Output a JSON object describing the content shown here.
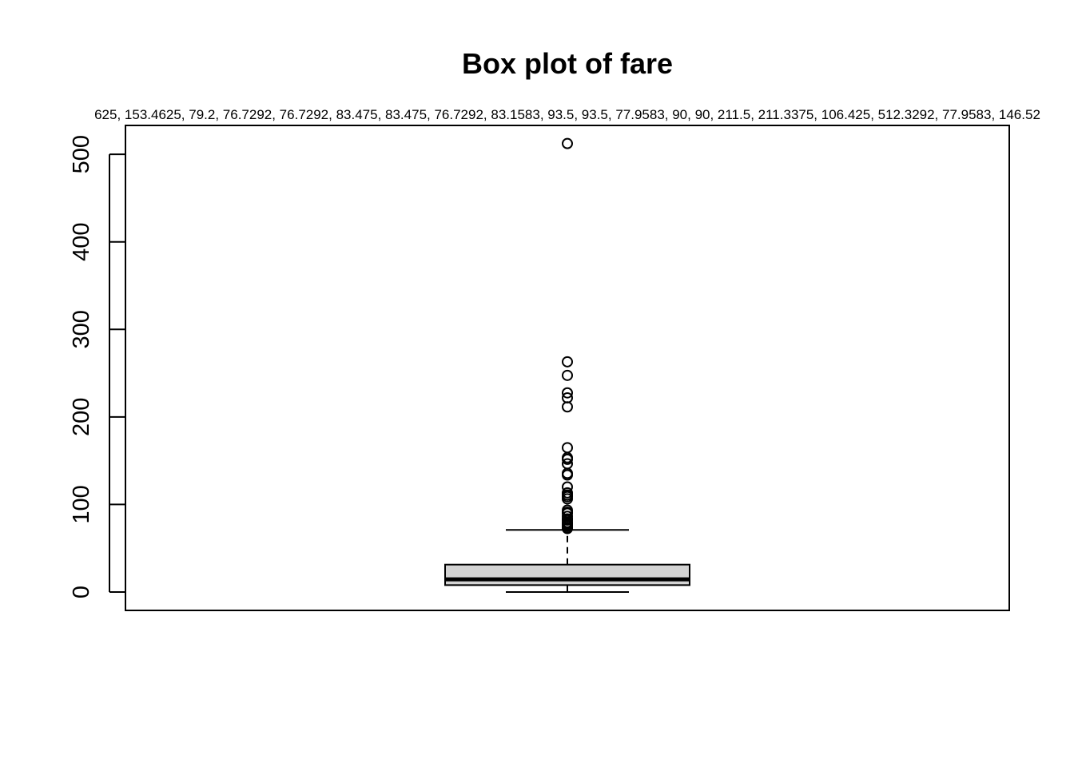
{
  "chart_data": {
    "type": "boxplot",
    "title": "Box plot of fare",
    "subtitle": "625, 153.4625, 79.2, 76.7292, 76.7292, 83.475, 83.475, 76.7292, 83.1583, 93.5, 93.5, 77.9583, 90, 90, 211.5, 211.3375, 106.425, 512.3292, 77.9583, 146.52",
    "xlabel": "",
    "ylabel": "",
    "ylim": [
      -21,
      533
    ],
    "y_ticks": [
      0,
      100,
      200,
      300,
      400,
      500
    ],
    "y_tick_labels": [
      "0",
      "100",
      "200",
      "300",
      "400",
      "500"
    ],
    "box": {
      "whisker_low": 0,
      "q1": 7.9,
      "median": 14.45,
      "q3": 31.3,
      "whisker_high": 71.0,
      "fill": "#d3d3d3"
    },
    "outliers": [
      512.3292,
      263,
      247.5,
      227.5,
      221.8,
      211.5,
      164.9,
      153.5,
      151.6,
      146.5,
      135.6,
      133.7,
      120,
      113.3,
      110.9,
      108.9,
      106.4,
      93.5,
      91.1,
      90,
      86.5,
      83.5,
      83.2,
      82.2,
      79.6,
      78.3,
      77.96,
      76.73,
      75.25,
      73.5,
      72.5
    ],
    "grid": false,
    "legend": "none"
  }
}
